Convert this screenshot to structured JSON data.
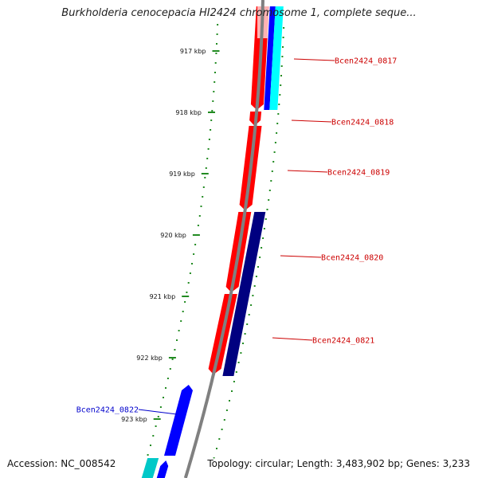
{
  "title": "Burkholderia cenocepacia HI2424 chromosome 1, complete seque...",
  "footer": {
    "accession": "Accession: NC_008542",
    "topology": "Topology: circular; Length: 3,483,902 bp; Genes: 3,233"
  },
  "ruler": {
    "unit": "kbp",
    "ticks": [
      {
        "label": "917 kbp"
      },
      {
        "label": "918 kbp"
      },
      {
        "label": "919 kbp"
      },
      {
        "label": "920 kbp"
      },
      {
        "label": "921 kbp"
      },
      {
        "label": "922 kbp"
      },
      {
        "label": "923 kbp"
      }
    ]
  },
  "genes": [
    {
      "name": "Bcen2424_0817",
      "strand": "-",
      "color": "#cc0000"
    },
    {
      "name": "Bcen2424_0818",
      "strand": "-",
      "color": "#cc0000"
    },
    {
      "name": "Bcen2424_0819",
      "strand": "-",
      "color": "#cc0000"
    },
    {
      "name": "Bcen2424_0820",
      "strand": "-",
      "color": "#cc0000"
    },
    {
      "name": "Bcen2424_0821",
      "strand": "-",
      "color": "#cc0000"
    },
    {
      "name": "Bcen2424_0822",
      "strand": "+",
      "color": "#0000cc"
    }
  ],
  "colors": {
    "forward_gene": "#0000ff",
    "reverse_gene": "#ff0000",
    "reverse_other": "#000080",
    "feature_light": "#00ffff",
    "feature_teal": "#00c8c8",
    "backbone": "#808080",
    "ruler_dots": "#228b22"
  }
}
